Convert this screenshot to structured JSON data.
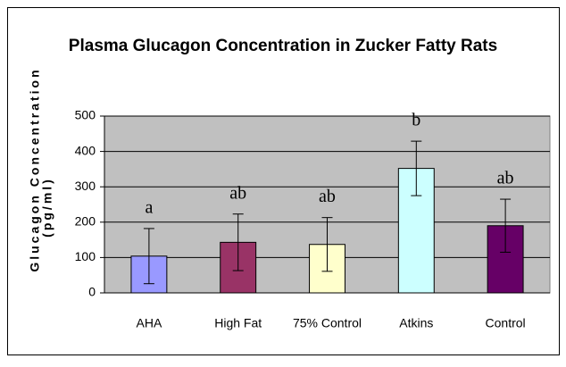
{
  "chart_data": {
    "type": "bar",
    "title": "Plasma Glucagon Concentration in Zucker Fatty Rats",
    "ylabel": [
      "Glucagon Concentration",
      "(pg/ml)"
    ],
    "categories": [
      "AHA",
      "High Fat",
      "75% Control",
      "Atkins",
      "Control"
    ],
    "values": [
      104,
      143,
      137,
      352,
      190
    ],
    "errors": [
      78,
      80,
      76,
      77,
      75
    ],
    "colors": [
      "#9999ff",
      "#993366",
      "#ffffcc",
      "#ccffff",
      "#660066"
    ],
    "annotations": [
      "a",
      "ab",
      "ab",
      "b",
      "ab"
    ],
    "ylim": [
      0,
      500
    ],
    "yticks": [
      0,
      100,
      200,
      300,
      400,
      500
    ],
    "grid": true
  }
}
